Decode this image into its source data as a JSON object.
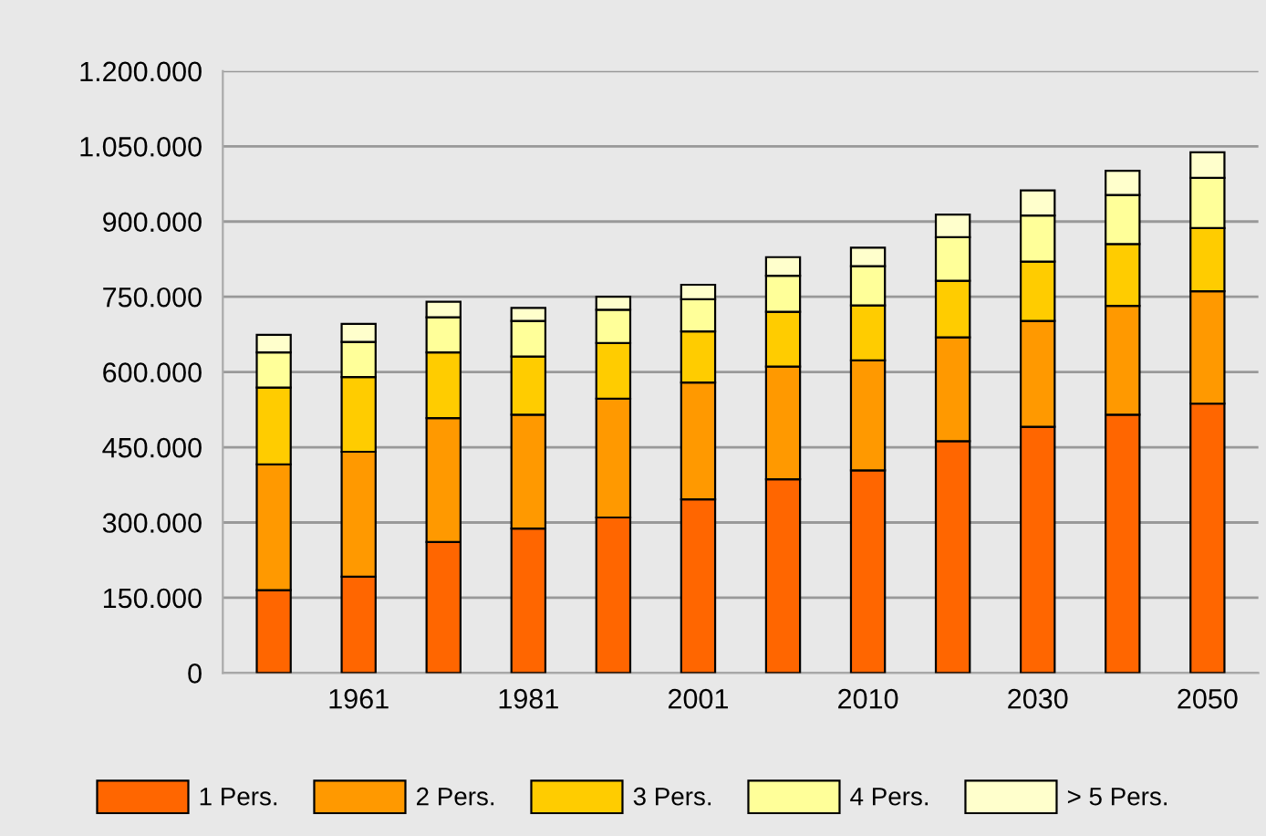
{
  "chart_data": {
    "type": "bar",
    "stacked": true,
    "categories": [
      null,
      "1961",
      null,
      "1981",
      null,
      "2001",
      null,
      "2010",
      null,
      "2030",
      null,
      "2050"
    ],
    "series": [
      {
        "name": "1 Pers.",
        "color": "#ff6600",
        "values": [
          165000,
          192000,
          261000,
          288000,
          310000,
          346000,
          386000,
          404000,
          462000,
          491000,
          515000,
          537000
        ]
      },
      {
        "name": "2 Pers.",
        "color": "#ff9900",
        "values": [
          251000,
          249000,
          247000,
          227000,
          237000,
          233000,
          225000,
          219000,
          207000,
          211000,
          217000,
          224000
        ]
      },
      {
        "name": "3 Pers.",
        "color": "#ffcc00",
        "values": [
          153000,
          149000,
          131000,
          116000,
          111000,
          102000,
          109000,
          110000,
          113000,
          118000,
          123000,
          126000
        ]
      },
      {
        "name": "4 Pers.",
        "color": "#ffff99",
        "values": [
          70000,
          70000,
          70000,
          71000,
          66000,
          64000,
          72000,
          78000,
          87000,
          92000,
          98000,
          100000
        ]
      },
      {
        "name": "> 5 Pers.",
        "color": "#ffffcc",
        "values": [
          35000,
          36000,
          31000,
          26000,
          26000,
          29000,
          37000,
          37000,
          45000,
          50000,
          48000,
          51000
        ]
      }
    ],
    "ylim": [
      0,
      1200000
    ],
    "yticks": [
      {
        "value": 0,
        "label": "0"
      },
      {
        "value": 150000,
        "label": "150.000"
      },
      {
        "value": 300000,
        "label": "300.000"
      },
      {
        "value": 450000,
        "label": "450.000"
      },
      {
        "value": 600000,
        "label": "600.000"
      },
      {
        "value": 750000,
        "label": "750.000"
      },
      {
        "value": 900000,
        "label": "900.000"
      },
      {
        "value": 1050000,
        "label": "1.050.000"
      },
      {
        "value": 1200000,
        "label": "1.200.000"
      }
    ],
    "grid": "y",
    "legend": "bottom"
  }
}
